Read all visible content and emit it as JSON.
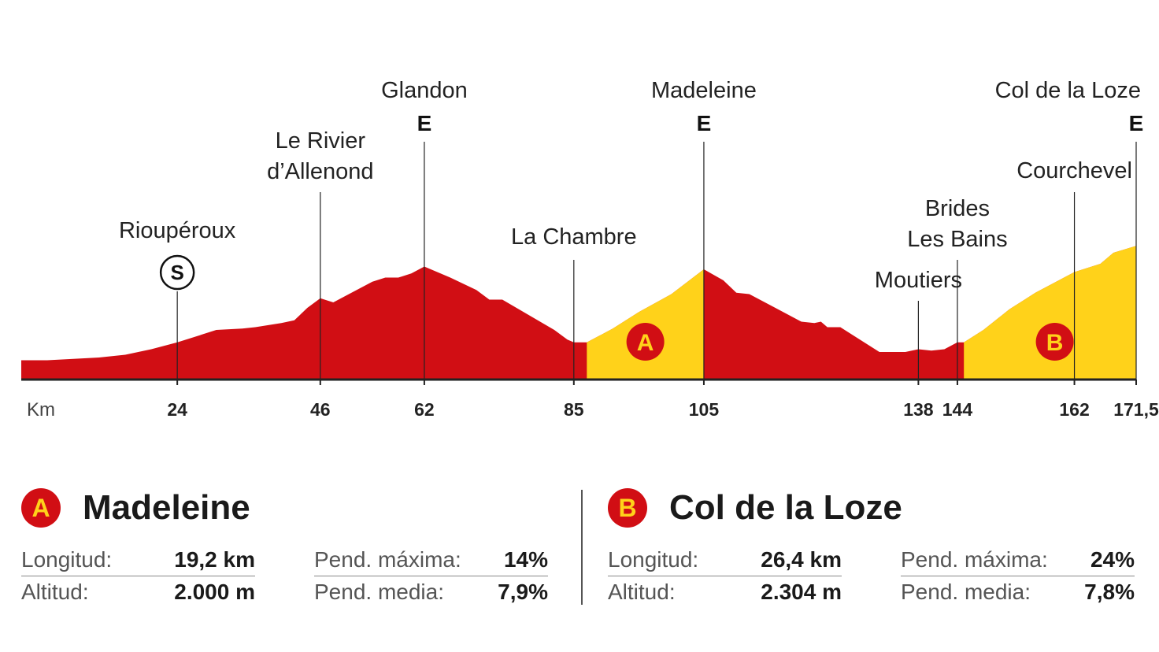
{
  "chart_data": {
    "type": "area",
    "km_axis_label": "Km",
    "x_range": [
      0,
      171.5
    ],
    "tick_labels": [
      "24",
      "46",
      "62",
      "85",
      "105",
      "138",
      "144",
      "162",
      "171,5"
    ],
    "tick_values": [
      24,
      46,
      62,
      85,
      105,
      138,
      144,
      162,
      171.5
    ],
    "places": [
      {
        "name": "Rioupéroux",
        "km": 24,
        "marker": "S"
      },
      {
        "name": "Le Rivier d'Allenond",
        "lines": [
          "Le Rivier",
          "d’Allenond"
        ],
        "km": 46
      },
      {
        "name": "Glandon",
        "km": 62,
        "marker": "E"
      },
      {
        "name": "La Chambre",
        "km": 85
      },
      {
        "name": "Madeleine",
        "km": 105,
        "marker": "E"
      },
      {
        "name": "Moutiers",
        "km": 138
      },
      {
        "name": "Brides Les Bains",
        "lines": [
          "Brides",
          "Les Bains"
        ],
        "km": 144
      },
      {
        "name": "Courchevel",
        "km": 162
      },
      {
        "name": "Col de la Loze",
        "km": 171.5,
        "marker": "E"
      }
    ],
    "profile_relative_height": [
      [
        0,
        0.14
      ],
      [
        4,
        0.14
      ],
      [
        8,
        0.15
      ],
      [
        12,
        0.16
      ],
      [
        16,
        0.18
      ],
      [
        20,
        0.22
      ],
      [
        24,
        0.27
      ],
      [
        28,
        0.33
      ],
      [
        30,
        0.36
      ],
      [
        34,
        0.37
      ],
      [
        36,
        0.38
      ],
      [
        40,
        0.41
      ],
      [
        42,
        0.43
      ],
      [
        44,
        0.52
      ],
      [
        46,
        0.59
      ],
      [
        48,
        0.56
      ],
      [
        50,
        0.61
      ],
      [
        54,
        0.71
      ],
      [
        56,
        0.74
      ],
      [
        58,
        0.74
      ],
      [
        60,
        0.77
      ],
      [
        62,
        0.82
      ],
      [
        66,
        0.74
      ],
      [
        70,
        0.65
      ],
      [
        72,
        0.58
      ],
      [
        74,
        0.58
      ],
      [
        78,
        0.47
      ],
      [
        82,
        0.36
      ],
      [
        84,
        0.29
      ],
      [
        85,
        0.27
      ],
      [
        87,
        0.27
      ],
      [
        91,
        0.37
      ],
      [
        95,
        0.49
      ],
      [
        100,
        0.62
      ],
      [
        105,
        0.8
      ],
      [
        108,
        0.72
      ],
      [
        110,
        0.63
      ],
      [
        112,
        0.62
      ],
      [
        116,
        0.52
      ],
      [
        120,
        0.42
      ],
      [
        122,
        0.41
      ],
      [
        123,
        0.42
      ],
      [
        124,
        0.38
      ],
      [
        126,
        0.38
      ],
      [
        128,
        0.32
      ],
      [
        132,
        0.2
      ],
      [
        136,
        0.2
      ],
      [
        138,
        0.22
      ],
      [
        140,
        0.21
      ],
      [
        142,
        0.22
      ],
      [
        144,
        0.27
      ],
      [
        145,
        0.27
      ],
      [
        148,
        0.36
      ],
      [
        152,
        0.51
      ],
      [
        156,
        0.63
      ],
      [
        162,
        0.78
      ],
      [
        166,
        0.84
      ],
      [
        168,
        0.92
      ],
      [
        171.5,
        0.97
      ]
    ],
    "highlighted_climbs": [
      {
        "badge": "A",
        "from_km": 87,
        "to_km": 105,
        "color": "#FFD21A"
      },
      {
        "badge": "B",
        "from_km": 145,
        "to_km": 171.5,
        "color": "#FFD21A"
      }
    ],
    "base_color": "#D10E14"
  },
  "climbs": [
    {
      "badge": "A",
      "title": "Madeleine",
      "stats": {
        "longitud_label": "Longitud:",
        "longitud": "19,2 km",
        "altitud_label": "Altitud:",
        "altitud": "2.000 m",
        "pend_max_label": "Pend. máxima:",
        "pend_max": "14%",
        "pend_media_label": "Pend. media:",
        "pend_media": "7,9%"
      }
    },
    {
      "badge": "B",
      "title": "Col de la Loze",
      "stats": {
        "longitud_label": "Longitud:",
        "longitud": "26,4 km",
        "altitud_label": "Altitud:",
        "altitud": "2.304 m",
        "pend_max_label": "Pend. máxima:",
        "pend_max": "24%",
        "pend_media_label": "Pend. media:",
        "pend_media": "7,8%"
      }
    }
  ]
}
